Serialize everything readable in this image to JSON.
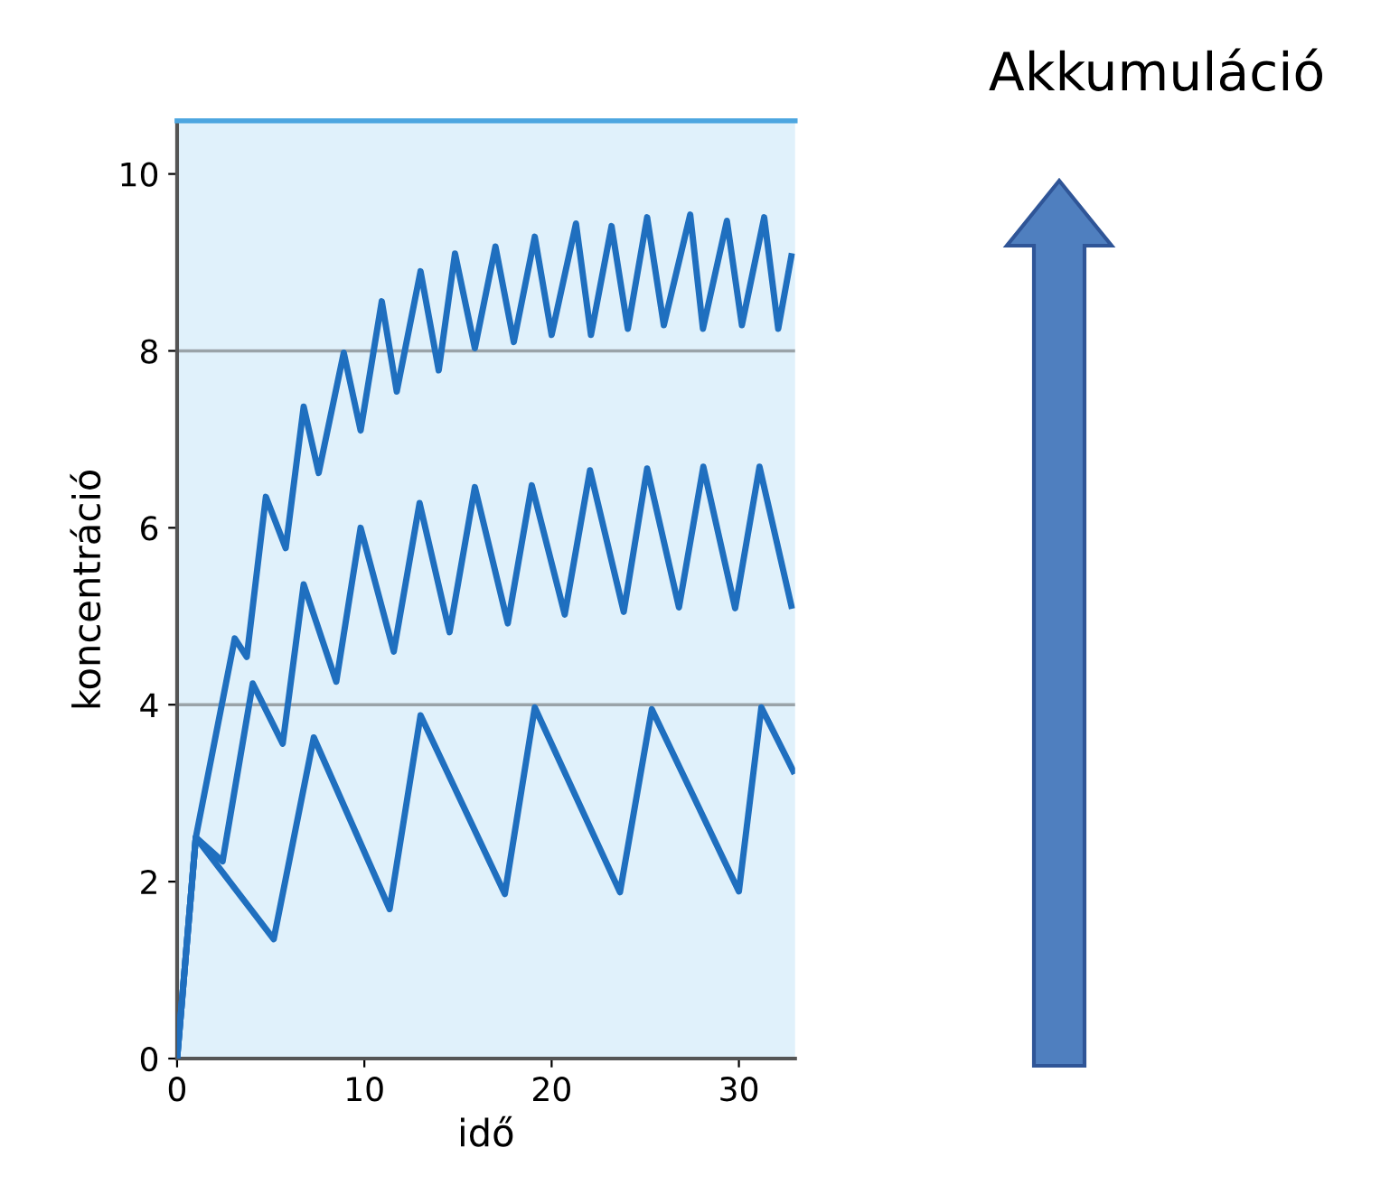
{
  "chart_data": {
    "type": "line",
    "xlabel": "idő",
    "ylabel": "koncentráció",
    "xlim": [
      0,
      33
    ],
    "ylim": [
      0,
      10.6
    ],
    "xticks": [
      0,
      10,
      20,
      30
    ],
    "yticks": [
      0,
      2,
      4,
      6,
      8,
      10
    ],
    "grid": false,
    "legend": false,
    "marker": "none",
    "line_style": "solid",
    "ref_lines": [
      {
        "axis": "y",
        "value": 4,
        "color": "#9aa3a8"
      },
      {
        "axis": "y",
        "value": 8,
        "color": "#9aa3a8"
      }
    ],
    "annotations": [
      "Akkumuláció"
    ],
    "series": [
      {
        "color": "#1f6fbf",
        "x": [
          0,
          1,
          5.16,
          7.3,
          11.35,
          13.0,
          17.5,
          19.1,
          23.65,
          25.35,
          30.0,
          31.2,
          32.9
        ],
        "values": [
          0,
          2.5,
          1.35,
          3.63,
          1.69,
          3.88,
          1.86,
          3.97,
          1.88,
          3.95,
          1.89,
          3.97,
          3.25
        ]
      },
      {
        "color": "#1f6fbf",
        "x": [
          0,
          1,
          2.43,
          4.04,
          5.64,
          6.76,
          8.5,
          9.8,
          11.57,
          12.95,
          14.55,
          15.9,
          17.66,
          18.94,
          20.7,
          22.05,
          23.85,
          25.1,
          26.8,
          28.1,
          29.8,
          31.1,
          32.8
        ],
        "values": [
          0,
          2.5,
          2.23,
          4.24,
          3.56,
          5.36,
          4.26,
          6.0,
          4.6,
          6.28,
          4.82,
          6.46,
          4.92,
          6.48,
          5.02,
          6.65,
          5.05,
          6.67,
          5.1,
          6.69,
          5.09,
          6.69,
          5.12
        ]
      },
      {
        "color": "#1f6fbf",
        "x": [
          0,
          1,
          3.08,
          3.72,
          4.74,
          5.8,
          6.76,
          7.56,
          8.9,
          9.8,
          10.93,
          11.73,
          13.0,
          13.97,
          14.84,
          15.9,
          17.0,
          17.98,
          19.1,
          20.0,
          21.3,
          22.1,
          23.2,
          24.07,
          25.1,
          25.99,
          27.4,
          28.08,
          29.36,
          30.16,
          31.35,
          32.1,
          32.8
        ],
        "values": [
          0,
          2.5,
          4.75,
          4.54,
          6.35,
          5.77,
          7.37,
          6.62,
          7.98,
          7.1,
          8.56,
          7.54,
          8.9,
          7.78,
          9.1,
          8.03,
          9.18,
          8.1,
          9.29,
          8.18,
          9.44,
          8.18,
          9.41,
          8.25,
          9.51,
          8.29,
          9.54,
          8.25,
          9.47,
          8.29,
          9.51,
          8.25,
          9.07
        ]
      }
    ]
  }
}
